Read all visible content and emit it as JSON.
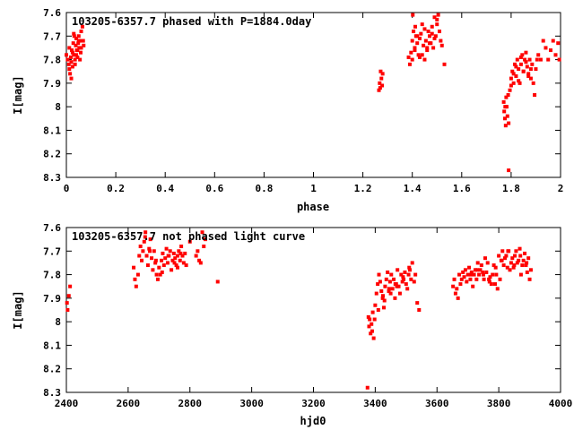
{
  "chart_data": [
    {
      "type": "scatter",
      "title": "103205-6357.7 phased with P=1884.0day",
      "xlabel": "phase",
      "ylabel": "I[mag]",
      "xlim": [
        0,
        2
      ],
      "ylim": [
        7.6,
        8.3
      ],
      "y_inverted": true,
      "xticks": [
        "0",
        "0.2",
        "0.4",
        "0.6",
        "0.8",
        "1",
        "1.2",
        "1.4",
        "1.6",
        "1.8",
        "2"
      ],
      "yticks": [
        "7.6",
        "7.7",
        "7.8",
        "7.9",
        "8",
        "8.1",
        "8.2",
        "8.3"
      ],
      "marker_color": "#ff0000",
      "series": [
        {
          "x": [
            0.0,
            0.005,
            0.01,
            0.012,
            0.015,
            0.018,
            0.02,
            0.022,
            0.025,
            0.028,
            0.03,
            0.032,
            0.035,
            0.038,
            0.04,
            0.042,
            0.045,
            0.048,
            0.05,
            0.052,
            0.055,
            0.058,
            0.06,
            0.065,
            0.068,
            0.07,
            0.012,
            0.02,
            0.025,
            0.03,
            0.04,
            0.05,
            0.06,
            0.035,
            0.045,
            0.055,
            1.265,
            1.268,
            1.27,
            1.272,
            1.275,
            1.278,
            1.28,
            1.385,
            1.39,
            1.395,
            1.4,
            1.402,
            1.405,
            1.41,
            1.412,
            1.415,
            1.42,
            1.425,
            1.43,
            1.435,
            1.44,
            1.445,
            1.45,
            1.455,
            1.46,
            1.465,
            1.47,
            1.475,
            1.48,
            1.485,
            1.49,
            1.495,
            1.5,
            1.505,
            1.51,
            1.515,
            1.52,
            1.53,
            1.4,
            1.41,
            1.42,
            1.44,
            1.46,
            1.48,
            1.49,
            1.5,
            1.43,
            1.45,
            1.47,
            1.77,
            1.772,
            1.775,
            1.778,
            1.78,
            1.782,
            1.785,
            1.788,
            1.79,
            1.795,
            1.8,
            1.805,
            1.81,
            1.815,
            1.82,
            1.825,
            1.83,
            1.835,
            1.84,
            1.845,
            1.85,
            1.855,
            1.86,
            1.865,
            1.87,
            1.875,
            1.88,
            1.885,
            1.89,
            1.895,
            1.9,
            1.905,
            1.91,
            1.92,
            1.93,
            1.94,
            1.95,
            1.96,
            1.97,
            1.98,
            1.99,
            1.995,
            1.8,
            1.81,
            1.82,
            1.83,
            1.84,
            1.85,
            1.86,
            1.87,
            1.88,
            1.79,
            1.776
          ],
          "y": [
            7.78,
            7.8,
            7.82,
            7.75,
            7.86,
            7.79,
            7.88,
            7.76,
            7.83,
            7.73,
            7.78,
            7.7,
            7.8,
            7.74,
            7.71,
            7.76,
            7.79,
            7.73,
            7.7,
            7.75,
            7.72,
            7.77,
            7.68,
            7.66,
            7.72,
            7.74,
            7.84,
            7.81,
            7.77,
            7.69,
            7.78,
            7.72,
            7.75,
            7.82,
            7.76,
            7.8,
            7.93,
            7.9,
            7.92,
            7.85,
            7.88,
            7.91,
            7.86,
            7.79,
            7.82,
            7.77,
            7.72,
            7.61,
            7.68,
            7.75,
            7.66,
            7.7,
            7.73,
            7.78,
            7.71,
            7.69,
            7.65,
            7.74,
            7.8,
            7.72,
            7.76,
            7.68,
            7.7,
            7.73,
            7.66,
            7.75,
            7.62,
            7.7,
            7.65,
            7.61,
            7.68,
            7.72,
            7.74,
            7.82,
            7.8,
            7.76,
            7.7,
            7.78,
            7.75,
            7.69,
            7.71,
            7.63,
            7.79,
            7.67,
            7.73,
            7.98,
            8.02,
            8.05,
            8.08,
            7.96,
            8.0,
            8.04,
            7.95,
            8.07,
            7.93,
            7.88,
            7.85,
            7.9,
            7.82,
            7.87,
            7.8,
            7.84,
            7.9,
            7.82,
            7.78,
            7.85,
            7.8,
            7.77,
            7.83,
            7.86,
            7.8,
            7.88,
            7.82,
            7.9,
            7.95,
            7.84,
            7.8,
            7.78,
            7.8,
            7.72,
            7.75,
            7.8,
            7.76,
            7.72,
            7.78,
            7.73,
            7.8,
            7.91,
            7.86,
            7.83,
            7.89,
            7.79,
            7.85,
            7.81,
            7.87,
            7.84,
            8.27,
            8.0
          ]
        }
      ]
    },
    {
      "type": "scatter",
      "title": "103205-6357.7 not phased light curve",
      "xlabel": "hjd0",
      "ylabel": "I[mag]",
      "xlim": [
        2400,
        4000
      ],
      "ylim": [
        7.6,
        8.3
      ],
      "y_inverted": true,
      "xticks": [
        "2400",
        "2600",
        "2800",
        "3000",
        "3200",
        "3400",
        "3600",
        "3800",
        "4000"
      ],
      "yticks": [
        "7.6",
        "7.7",
        "7.8",
        "7.9",
        "8",
        "8.1",
        "8.2",
        "8.3"
      ],
      "marker_color": "#ff0000",
      "series": [
        {
          "x": [
            2402,
            2404,
            2408,
            2412,
            2618,
            2622,
            2626,
            2632,
            2636,
            2640,
            2644,
            2648,
            2652,
            2656,
            2660,
            2664,
            2668,
            2672,
            2676,
            2680,
            2684,
            2688,
            2692,
            2696,
            2700,
            2704,
            2708,
            2712,
            2716,
            2720,
            2724,
            2728,
            2732,
            2736,
            2740,
            2744,
            2748,
            2752,
            2756,
            2760,
            2764,
            2768,
            2772,
            2776,
            2780,
            2784,
            2788,
            2800,
            2820,
            2825,
            2830,
            2835,
            2840,
            2845,
            2850,
            2890,
            2655,
            2670,
            2690,
            2710,
            2730,
            2750,
            2760,
            2770,
            3375,
            3378,
            3380,
            3382,
            3385,
            3388,
            3390,
            3392,
            3395,
            3398,
            3400,
            3404,
            3408,
            3412,
            3416,
            3420,
            3424,
            3428,
            3432,
            3436,
            3440,
            3444,
            3448,
            3452,
            3456,
            3460,
            3464,
            3468,
            3472,
            3476,
            3480,
            3484,
            3488,
            3492,
            3496,
            3500,
            3504,
            3508,
            3512,
            3516,
            3520,
            3526,
            3530,
            3536,
            3542,
            3410,
            3430,
            3450,
            3470,
            3490,
            3510,
            3425,
            3445,
            3465,
            3652,
            3656,
            3660,
            3664,
            3668,
            3672,
            3676,
            3680,
            3684,
            3688,
            3692,
            3696,
            3700,
            3704,
            3708,
            3712,
            3716,
            3720,
            3724,
            3728,
            3732,
            3736,
            3740,
            3744,
            3748,
            3752,
            3756,
            3760,
            3764,
            3768,
            3772,
            3776,
            3780,
            3784,
            3788,
            3792,
            3796,
            3800,
            3804,
            3808,
            3812,
            3816,
            3820,
            3824,
            3828,
            3832,
            3836,
            3840,
            3844,
            3848,
            3852,
            3856,
            3860,
            3864,
            3868,
            3872,
            3876,
            3880,
            3884,
            3888,
            3892,
            3896,
            3900,
            3904,
            3710,
            3730,
            3750,
            3770,
            3790,
            3810,
            3830,
            3850,
            3870,
            3890
          ],
          "y": [
            7.92,
            7.95,
            7.89,
            7.85,
            7.77,
            7.82,
            7.85,
            7.8,
            7.72,
            7.68,
            7.74,
            7.7,
            7.66,
            7.62,
            7.72,
            7.76,
            7.69,
            7.65,
            7.73,
            7.78,
            7.7,
            7.75,
            7.8,
            7.82,
            7.77,
            7.8,
            7.74,
            7.71,
            7.76,
            7.73,
            7.69,
            7.75,
            7.72,
            7.7,
            7.78,
            7.74,
            7.71,
            7.73,
            7.76,
            7.72,
            7.7,
            7.74,
            7.68,
            7.72,
            7.75,
            7.71,
            7.76,
            7.66,
            7.72,
            7.7,
            7.74,
            7.75,
            7.62,
            7.68,
            7.65,
            7.83,
            7.64,
            7.7,
            7.74,
            7.79,
            7.72,
            7.75,
            7.77,
            7.71,
            8.28,
            7.98,
            8.02,
            7.99,
            8.05,
            8.01,
            8.04,
            7.96,
            8.07,
            7.99,
            7.93,
            7.88,
            7.84,
            7.8,
            7.83,
            7.87,
            7.9,
            7.94,
            7.85,
            7.82,
            7.79,
            7.87,
            7.83,
            7.8,
            7.86,
            7.82,
            7.9,
            7.84,
            7.78,
            7.85,
            7.88,
            7.8,
            7.83,
            7.82,
            7.79,
            7.84,
            7.86,
            7.8,
            7.78,
            7.82,
            7.75,
            7.83,
            7.8,
            7.92,
            7.95,
            7.95,
            7.91,
            7.88,
            7.85,
            7.81,
            7.77,
            7.89,
            7.86,
            7.84,
            7.85,
            7.82,
            7.88,
            7.86,
            7.9,
            7.8,
            7.84,
            7.82,
            7.79,
            7.81,
            7.78,
            7.83,
            7.8,
            7.77,
            7.82,
            7.79,
            7.85,
            7.8,
            7.78,
            7.82,
            7.75,
            7.8,
            7.78,
            7.76,
            7.79,
            7.82,
            7.73,
            7.79,
            7.75,
            7.82,
            7.81,
            7.84,
            7.8,
            7.76,
            7.84,
            7.8,
            7.86,
            7.72,
            7.82,
            7.74,
            7.7,
            7.76,
            7.73,
            7.72,
            7.77,
            7.7,
            7.78,
            7.75,
            7.73,
            7.77,
            7.72,
            7.7,
            7.75,
            7.74,
            7.69,
            7.8,
            7.76,
            7.74,
            7.71,
            7.76,
            7.79,
            7.73,
            7.82,
            7.78,
            7.8,
            7.78,
            7.8,
            7.83,
            7.77,
            7.74,
            7.7,
            7.76,
            7.72,
            7.75
          ]
        }
      ]
    }
  ]
}
